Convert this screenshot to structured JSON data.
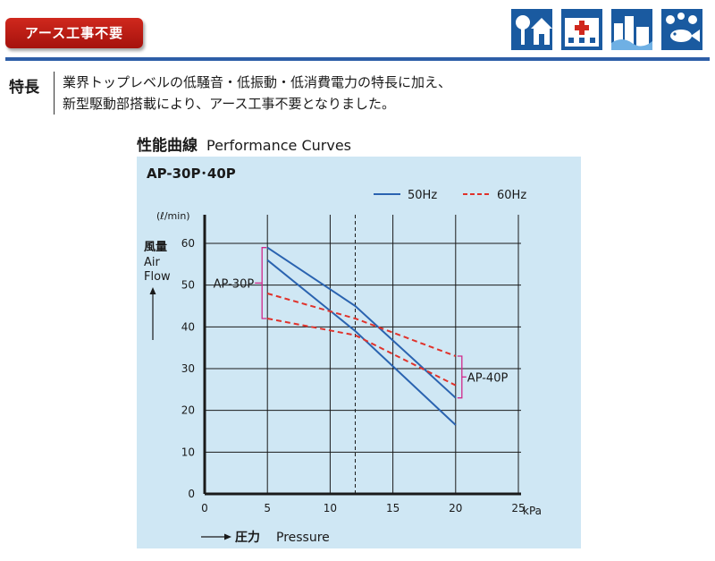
{
  "header": {
    "badge_label": "アース工事不要",
    "icons": [
      "tree-house-icon",
      "hospital-icon",
      "city-river-icon",
      "fish-pond-icon"
    ],
    "colors": {
      "badge": "#c0201a",
      "rule": "#2d5ea7",
      "icon_bg": "#1a5aa0"
    }
  },
  "features": {
    "label": "特長",
    "line1": "業界トップレベルの低騒音・低振動・低消費電力の特長に加え、",
    "line2": "新型駆動部搭載により、アース工事不要となりました。"
  },
  "section": {
    "title_jp": "性能曲線",
    "title_en": "Performance Curves"
  },
  "chart_data": {
    "type": "line",
    "title": "AP-30P･40P",
    "ylabel_jp": "風量",
    "ylabel_en_1": "Air",
    "ylabel_en_2": "Flow",
    "yunit": "(ℓ/min)",
    "xlabel_jp": "圧力",
    "xlabel_en": "Pressure",
    "xunit": "kPa",
    "xlim": [
      0,
      25
    ],
    "ylim": [
      0,
      60
    ],
    "xticks": [
      0,
      5,
      10,
      15,
      20,
      25
    ],
    "yticks": [
      0,
      10,
      20,
      30,
      40,
      50,
      60
    ],
    "grid": true,
    "legend_position": "top-right",
    "legend": [
      {
        "label": "50Hz",
        "color": "#2a63b0",
        "style": "solid"
      },
      {
        "label": "60Hz",
        "color": "#e0322b",
        "style": "dashed"
      }
    ],
    "reference_line_x": 12,
    "series": [
      {
        "model": "AP-40P",
        "freq": "50Hz",
        "x": [
          5,
          12,
          20
        ],
        "y": [
          59,
          45,
          23
        ]
      },
      {
        "model": "AP-30P",
        "freq": "50Hz",
        "x": [
          5,
          12,
          20
        ],
        "y": [
          56,
          39,
          16.5
        ]
      },
      {
        "model": "AP-30P",
        "freq": "60Hz",
        "x": [
          5,
          12,
          20
        ],
        "y": [
          48,
          42,
          33
        ]
      },
      {
        "model": "AP-40P",
        "freq": "60Hz",
        "x": [
          5,
          12,
          20
        ],
        "y": [
          42,
          38,
          26
        ]
      }
    ],
    "annotations": [
      {
        "label": "AP-30P",
        "side": "left"
      },
      {
        "label": "AP-40P",
        "side": "right"
      }
    ]
  }
}
